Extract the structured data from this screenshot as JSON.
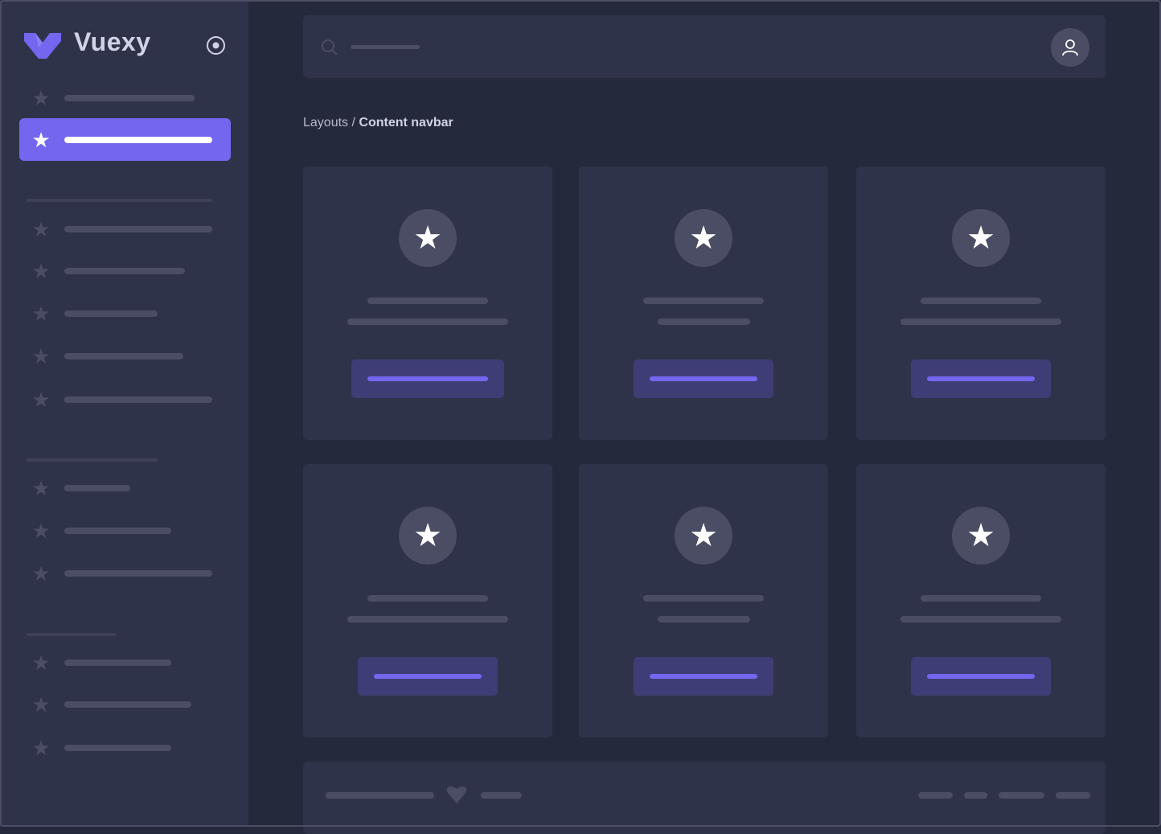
{
  "brand": {
    "name": "Vuexy",
    "accent": "#7367f0"
  },
  "navbar": {
    "search_icon": "search-icon",
    "user_icon": "user-icon"
  },
  "breadcrumb": {
    "parent": "Layouts",
    "separator": " / ",
    "current": "Content navbar"
  },
  "colors": {
    "sidebar": "#2f3349",
    "background": "#25293c",
    "card": "#2f3349",
    "placeholder": "#4a4d63",
    "accent": "#7367f0",
    "button": "#3f3d75"
  }
}
